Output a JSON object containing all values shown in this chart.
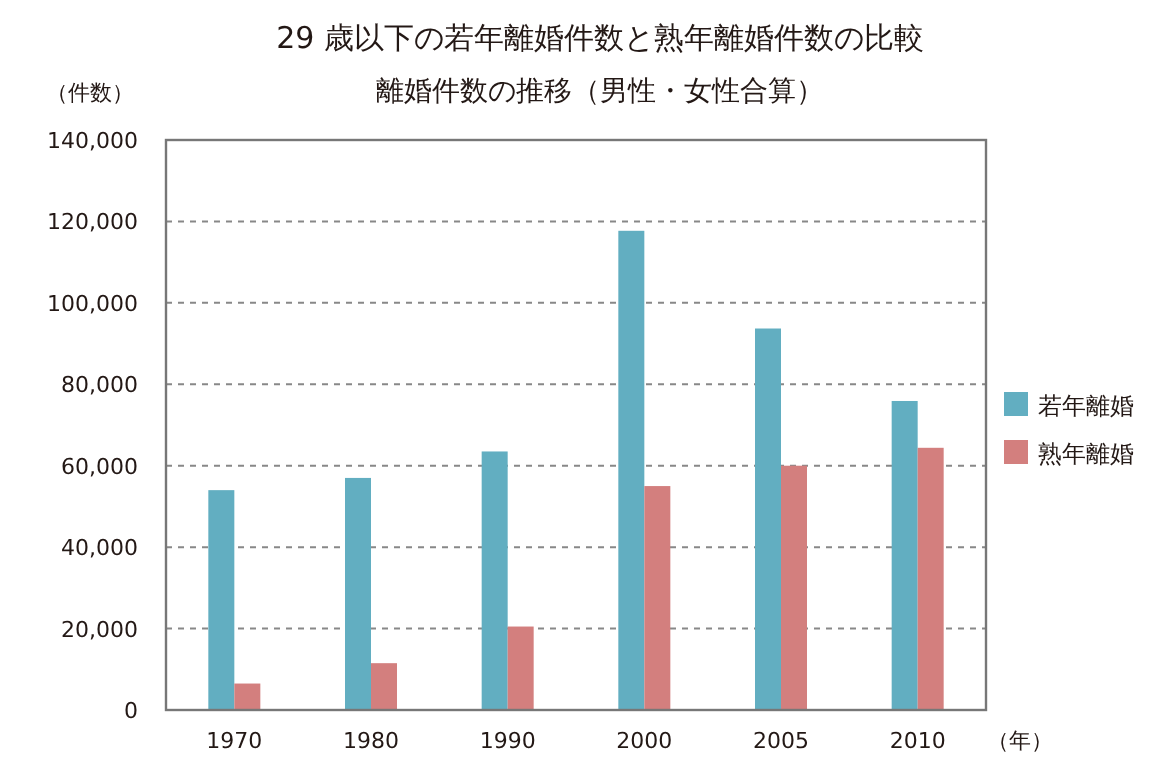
{
  "chart_data": {
    "type": "bar",
    "title": "29 歳以下の若年離婚件数と熟年離婚件数の比較",
    "subtitle": "離婚件数の推移（男性・女性合算）",
    "ylabel": "（件数）",
    "xlabel": "（年）",
    "categories": [
      "1970",
      "1980",
      "1990",
      "2000",
      "2005",
      "2010"
    ],
    "series": [
      {
        "name": "若年離婚",
        "color": "#62aec1",
        "values": [
          54000,
          57000,
          63500,
          117700,
          93700,
          75900
        ]
      },
      {
        "name": "熟年離婚",
        "color": "#d37f7e",
        "values": [
          6500,
          11500,
          20500,
          55000,
          60000,
          64400
        ]
      }
    ],
    "ylim": [
      0,
      140000
    ],
    "yticks": [
      0,
      {
        "value": 20000,
        "label": "20,000"
      },
      {
        "value": 40000,
        "label": "40,000"
      },
      {
        "value": 60000,
        "label": "60,000"
      },
      {
        "value": 80000,
        "label": "80,000"
      },
      {
        "value": 100000,
        "label": "100,000"
      },
      {
        "value": 120000,
        "label": "120,000"
      },
      {
        "value": 140000,
        "label": "140,000"
      }
    ],
    "grid": "y",
    "legend": "right"
  }
}
